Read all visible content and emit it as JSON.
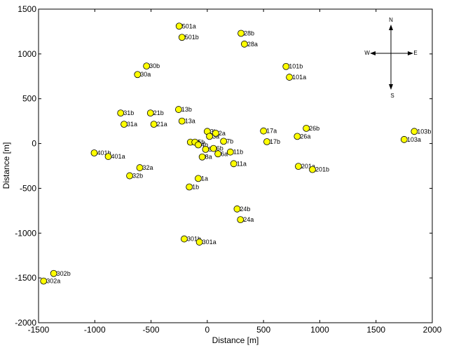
{
  "chart_data": {
    "type": "scatter",
    "xlabel": "Distance [m]",
    "ylabel": "Distance [m]",
    "xlim": [
      -1500,
      2000
    ],
    "ylim": [
      -2000,
      1500
    ],
    "xticks": [
      -1500,
      -1000,
      -500,
      0,
      500,
      1000,
      1500,
      2000
    ],
    "yticks": [
      -2000,
      -1500,
      -1000,
      -500,
      0,
      500,
      1000,
      1500
    ],
    "grid": false,
    "marker_color": "#ffff00",
    "marker_edge_color": "#000000",
    "compass": {
      "n": "N",
      "s": "S",
      "e": "E",
      "w": "W"
    },
    "points": [
      {
        "label": "501a",
        "x": -250,
        "y": 1310
      },
      {
        "label": "501b",
        "x": -225,
        "y": 1185
      },
      {
        "label": "28b",
        "x": 300,
        "y": 1230
      },
      {
        "label": "28a",
        "x": 330,
        "y": 1110
      },
      {
        "label": "30b",
        "x": -540,
        "y": 865
      },
      {
        "label": "30a",
        "x": -620,
        "y": 770
      },
      {
        "label": "101b",
        "x": 700,
        "y": 860
      },
      {
        "label": "101a",
        "x": 730,
        "y": 740
      },
      {
        "label": "13b",
        "x": -255,
        "y": 380
      },
      {
        "label": "13a",
        "x": -225,
        "y": 250
      },
      {
        "label": "31b",
        "x": -770,
        "y": 340
      },
      {
        "label": "31a",
        "x": -740,
        "y": 215
      },
      {
        "label": "21b",
        "x": -505,
        "y": 340
      },
      {
        "label": "21a",
        "x": -475,
        "y": 215
      },
      {
        "label": "103b",
        "x": 1840,
        "y": 135
      },
      {
        "label": "103a",
        "x": 1750,
        "y": 45
      },
      {
        "label": "17a",
        "x": 500,
        "y": 140
      },
      {
        "label": "17b",
        "x": 530,
        "y": 20
      },
      {
        "label": "26b",
        "x": 880,
        "y": 170
      },
      {
        "label": "26a",
        "x": 800,
        "y": 80
      },
      {
        "label": "3b",
        "x": 0,
        "y": 135
      },
      {
        "label": "3a",
        "x": 20,
        "y": 80
      },
      {
        "label": "2a",
        "x": 75,
        "y": 115
      },
      {
        "label": "7b",
        "x": 145,
        "y": 25
      },
      {
        "label": "11b",
        "x": 205,
        "y": -95
      },
      {
        "label": "11a",
        "x": 235,
        "y": -225
      },
      {
        "label": "5b",
        "x": -150,
        "y": 15
      },
      {
        "label": "5b",
        "x": -110,
        "y": 15
      },
      {
        "label": "4b",
        "x": -80,
        "y": -15
      },
      {
        "label": "5a",
        "x": -15,
        "y": -65
      },
      {
        "label": "6b",
        "x": 55,
        "y": -55
      },
      {
        "label": "6a",
        "x": 95,
        "y": -115
      },
      {
        "label": "8a",
        "x": -45,
        "y": -150
      },
      {
        "label": "401b",
        "x": -1005,
        "y": -105
      },
      {
        "label": "401a",
        "x": -880,
        "y": -145
      },
      {
        "label": "32a",
        "x": -600,
        "y": -270
      },
      {
        "label": "32b",
        "x": -690,
        "y": -360
      },
      {
        "label": "1a",
        "x": -80,
        "y": -390
      },
      {
        "label": "1b",
        "x": -160,
        "y": -485
      },
      {
        "label": "201a",
        "x": 810,
        "y": -255
      },
      {
        "label": "201b",
        "x": 935,
        "y": -290
      },
      {
        "label": "24b",
        "x": 265,
        "y": -730
      },
      {
        "label": "24a",
        "x": 295,
        "y": -850
      },
      {
        "label": "301b",
        "x": -205,
        "y": -1065
      },
      {
        "label": "301a",
        "x": -70,
        "y": -1100
      },
      {
        "label": "302b",
        "x": -1365,
        "y": -1450
      },
      {
        "label": "302a",
        "x": -1455,
        "y": -1535
      }
    ]
  }
}
